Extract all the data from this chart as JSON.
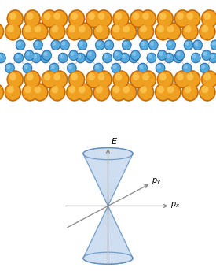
{
  "bg_color": "#ffffff",
  "cone_color_light": "#c5d8ee",
  "cone_color_dark": "#7aadd4",
  "cone_edge": "#5588bb",
  "axis_color": "#888888",
  "label_E": "$E$",
  "label_py": "$p_y$",
  "label_px": "$p_x$",
  "gold_color": "#f0a020",
  "gold_highlight": "#ffd060",
  "gold_shadow": "#cc6600",
  "gold_edge": "#bb6600",
  "blue_color": "#55aadd",
  "blue_highlight": "#99ccee",
  "blue_shadow": "#2266aa",
  "blue_edge": "#2266aa",
  "bond_color": "#cccccc"
}
